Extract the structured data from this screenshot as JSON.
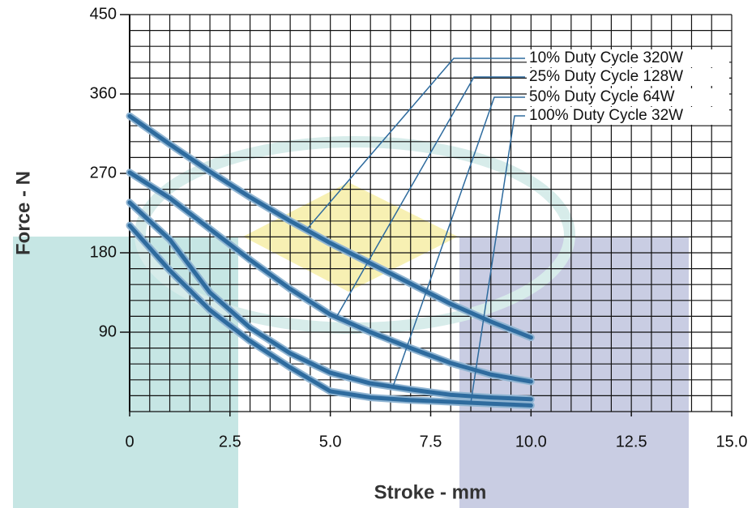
{
  "chart_data": {
    "type": "line",
    "x_label": "Stroke - mm",
    "y_label": "Force - N",
    "x": [
      0,
      1,
      2,
      3,
      4,
      5,
      6,
      7,
      8,
      9,
      10
    ],
    "series": [
      {
        "name": "10% Duty Cycle 320W",
        "color": "#2e6b9e",
        "values": [
          335,
          303,
          272,
          243,
          216,
          191,
          168,
          145,
          122,
          102,
          84
        ]
      },
      {
        "name": "25% Duty Cycle 128W",
        "color": "#2e6b9e",
        "values": [
          271,
          242,
          207,
          172,
          139,
          110,
          90,
          72,
          55,
          42,
          34
        ]
      },
      {
        "name": "50% Duty Cycle 64W",
        "color": "#2e6b9e",
        "values": [
          237,
          195,
          135,
          95,
          66,
          44,
          32,
          25,
          19,
          16,
          14
        ]
      },
      {
        "name": "100% Duty Cycle 32W",
        "color": "#2e6b9e",
        "values": [
          211,
          160,
          115,
          80,
          50,
          23,
          16,
          13,
          11,
          9,
          7
        ]
      }
    ],
    "xlim": [
      0,
      15
    ],
    "xticks": [
      0,
      2.5,
      {
        "value": 5,
        "label": "5.0"
      },
      7.5,
      {
        "value": 10,
        "label": "10.0"
      },
      12.5,
      {
        "value": 15,
        "label": "15.0"
      }
    ],
    "ylim": [
      0,
      450
    ],
    "yticks": [
      90,
      180,
      270,
      360,
      450
    ],
    "grid": true
  }
}
